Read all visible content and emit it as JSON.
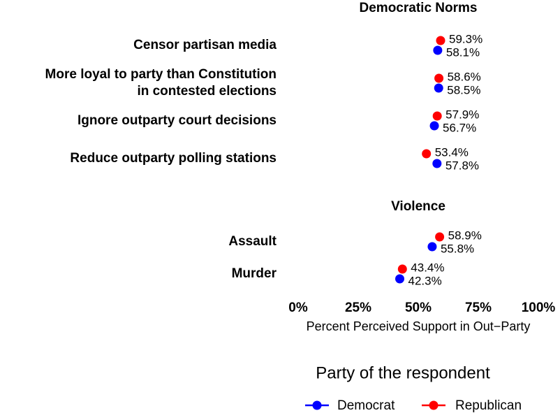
{
  "chart_data": {
    "type": "scatter",
    "xlabel": "Percent Perceived Support in Out−Party",
    "xlim": [
      0,
      100
    ],
    "x_ticks": [
      0,
      25,
      50,
      75,
      100
    ],
    "x_tick_labels": [
      "0%",
      "25%",
      "50%",
      "75%",
      "100%"
    ],
    "grid": false,
    "sections": [
      {
        "title": "Democratic Norms",
        "categories": [
          {
            "label": [
              "Censor partisan media"
            ],
            "republican": 59.3,
            "democrat": 58.1
          },
          {
            "label": [
              "More loyal to party than Constitution",
              "in contested elections"
            ],
            "republican": 58.6,
            "democrat": 58.5
          },
          {
            "label": [
              "Ignore outparty court decisions"
            ],
            "republican": 57.9,
            "democrat": 56.7
          },
          {
            "label": [
              "Reduce outparty polling stations"
            ],
            "republican": 53.4,
            "democrat": 57.8
          }
        ]
      },
      {
        "title": "Violence",
        "categories": [
          {
            "label": [
              "Assault"
            ],
            "republican": 58.9,
            "democrat": 55.8
          },
          {
            "label": [
              "Murder"
            ],
            "republican": 43.4,
            "democrat": 42.3
          }
        ]
      }
    ],
    "series": [
      {
        "key": "democrat",
        "name": "Democrat",
        "color": "#0000ff"
      },
      {
        "key": "republican",
        "name": "Republican",
        "color": "#ff0000"
      }
    ],
    "legend": {
      "title": "Party of the respondent",
      "position": "bottom"
    }
  }
}
